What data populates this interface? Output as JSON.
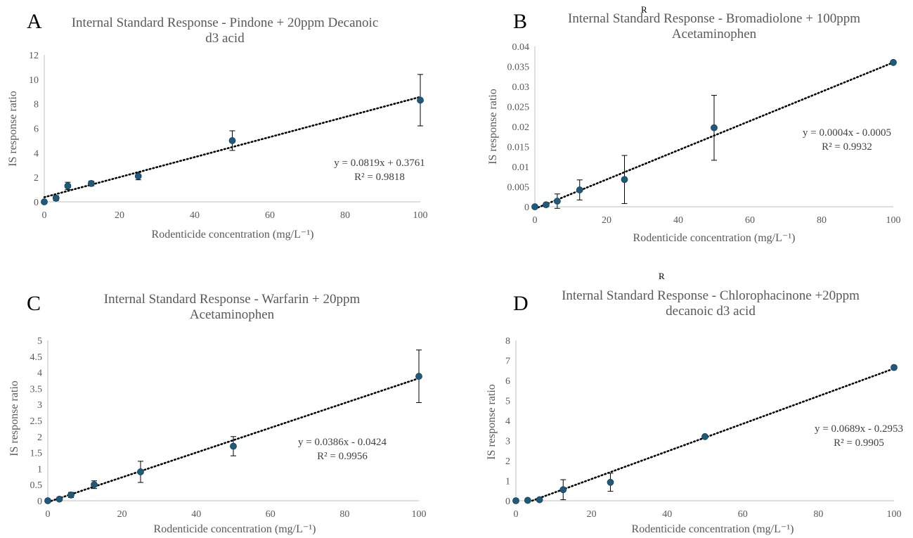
{
  "chart_data": [
    {
      "type": "scatter",
      "panel_label": "A",
      "title_lines": [
        "Internal Standard Response - Pindone + 20ppm Decanoic",
        "d3 acid"
      ],
      "xlabel": "Rodenticide concentration (mg/L⁻¹)",
      "ylabel": "IS response ratio",
      "xlim": [
        0,
        100
      ],
      "ylim": [
        0,
        12
      ],
      "x_ticks": [
        "0",
        "20",
        "40",
        "60",
        "80",
        "100"
      ],
      "y_ticks": [
        "0",
        "2",
        "4",
        "6",
        "8",
        "10",
        "12"
      ],
      "x_tick_values": [
        0,
        20,
        40,
        60,
        80,
        100
      ],
      "y_tick_values": [
        0,
        2,
        4,
        6,
        8,
        10,
        12
      ],
      "series": [
        {
          "x": [
            0,
            3.125,
            6.25,
            12.5,
            25,
            50,
            100
          ],
          "y": [
            0,
            0.3,
            1.3,
            1.5,
            2.1,
            5.0,
            8.3
          ],
          "yerr": [
            0.05,
            0.2,
            0.3,
            0.2,
            0.3,
            0.8,
            2.1
          ]
        }
      ],
      "trendline": {
        "slope": 0.0819,
        "intercept": 0.3761,
        "x_range": [
          0,
          100
        ]
      },
      "equation": "y = 0.0819x + 0.3761",
      "r_squared": "R² = 0.9818",
      "grid": false,
      "point_color": "#1f5a7a"
    },
    {
      "type": "scatter",
      "panel_label": "B",
      "marker_text": "R",
      "title_lines": [
        "Internal Standard Response - Bromadiolone + 100ppm",
        "Acetaminophen"
      ],
      "xlabel": "Rodenticide concentration (mg/L⁻¹)",
      "ylabel": "IS response ratio",
      "xlim": [
        0,
        100
      ],
      "ylim": [
        0,
        0.04
      ],
      "x_ticks": [
        "0",
        "20",
        "40",
        "60",
        "80",
        "100"
      ],
      "y_ticks": [
        "0",
        "0.005",
        "0.01",
        "0.015",
        "0.02",
        "0.025",
        "0.03",
        "0.035",
        "0.04"
      ],
      "x_tick_values": [
        0,
        20,
        40,
        60,
        80,
        100
      ],
      "y_tick_values": [
        0,
        0.005,
        0.01,
        0.015,
        0.02,
        0.025,
        0.03,
        0.035,
        0.04
      ],
      "series": [
        {
          "x": [
            0,
            3.125,
            6.25,
            12.5,
            25,
            50,
            100
          ],
          "y": [
            0,
            0.0005,
            0.0014,
            0.0042,
            0.0068,
            0.0197,
            0.036
          ],
          "yerr": [
            0,
            0.0004,
            0.0018,
            0.0025,
            0.006,
            0.0081,
            0
          ]
        }
      ],
      "trendline": {
        "slope": 0.000365,
        "intercept": -0.0005,
        "x_range": [
          0,
          100
        ]
      },
      "equation": "y = 0.0004x - 0.0005",
      "r_squared": "R² = 0.9932",
      "grid": false,
      "point_color": "#1f5a7a"
    },
    {
      "type": "scatter",
      "panel_label": "C",
      "title_lines": [
        "Internal Standard Response - Warfarin + 20ppm",
        "Acetaminophen"
      ],
      "xlabel": "Rodenticide concentration (mg/L⁻¹)",
      "ylabel": "IS response ratio",
      "xlim": [
        0,
        100
      ],
      "ylim": [
        0,
        5
      ],
      "x_ticks": [
        "0",
        "20",
        "40",
        "60",
        "80",
        "100"
      ],
      "y_ticks": [
        "0",
        "0.5",
        "1",
        "1.5",
        "2",
        "2.5",
        "3",
        "3.5",
        "4",
        "4.5",
        "5"
      ],
      "x_tick_values": [
        0,
        20,
        40,
        60,
        80,
        100
      ],
      "y_tick_values": [
        0,
        0.5,
        1,
        1.5,
        2,
        2.5,
        3,
        3.5,
        4,
        4.5,
        5
      ],
      "series": [
        {
          "x": [
            0,
            3.125,
            6.25,
            12.5,
            25,
            50,
            100
          ],
          "y": [
            0,
            0.05,
            0.18,
            0.5,
            0.9,
            1.7,
            3.88
          ],
          "yerr": [
            0,
            0.05,
            0.08,
            0.12,
            0.33,
            0.3,
            0.82
          ]
        }
      ],
      "trendline": {
        "slope": 0.0386,
        "intercept": -0.0424,
        "x_range": [
          0,
          100
        ]
      },
      "equation": "y = 0.0386x - 0.0424",
      "r_squared": "R² = 0.9956",
      "grid": false,
      "point_color": "#1f5a7a"
    },
    {
      "type": "scatter",
      "panel_label": "D",
      "marker_text": "R",
      "title_lines": [
        "Internal Standard Response - Chlorophacinone +20ppm",
        "decanoic d3 acid"
      ],
      "xlabel": "Rodenticide concentration (mg/L⁻¹)",
      "ylabel": "IS response ratio",
      "xlim": [
        0,
        100
      ],
      "ylim": [
        0,
        8
      ],
      "x_ticks": [
        "0",
        "20",
        "40",
        "60",
        "80",
        "100"
      ],
      "y_ticks": [
        "0",
        "1",
        "2",
        "3",
        "4",
        "5",
        "6",
        "7",
        "8"
      ],
      "x_tick_values": [
        0,
        20,
        40,
        60,
        80,
        100
      ],
      "y_tick_values": [
        0,
        1,
        2,
        3,
        4,
        5,
        6,
        7,
        8
      ],
      "series": [
        {
          "x": [
            0,
            3.125,
            6.25,
            12.5,
            25,
            50,
            100
          ],
          "y": [
            0,
            0.02,
            0.05,
            0.55,
            0.92,
            3.2,
            6.65
          ],
          "yerr": [
            0,
            0,
            0,
            0.5,
            0.45,
            0,
            0
          ]
        }
      ],
      "trendline": {
        "slope": 0.0689,
        "intercept": -0.2953,
        "x_range": [
          4.3,
          100
        ]
      },
      "equation": "y = 0.0689x - 0.2953",
      "r_squared": "R² = 0.9905",
      "grid": false,
      "point_color": "#1f5a7a"
    }
  ]
}
